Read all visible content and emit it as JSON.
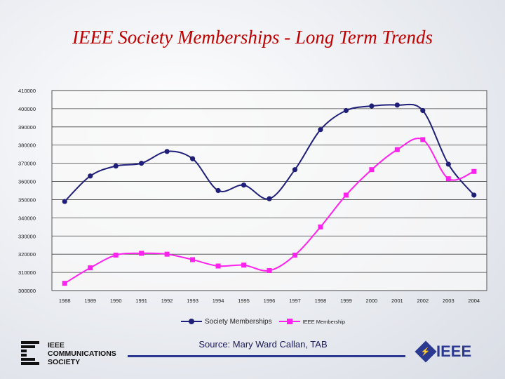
{
  "slide": {
    "title": "IEEE Society Memberships - Long Term Trends",
    "source": "Source: Mary Ward Callan, TAB"
  },
  "logos": {
    "comsoc_lines": [
      "IEEE",
      "COMMUNICATIONS",
      "SOCIETY"
    ],
    "ieee_text": "IEEE",
    "ieee_diamond_glyph": "⚡"
  },
  "colors": {
    "title": "#c00000",
    "series_society": "#1f1f7a",
    "series_ieee": "#ff22ee",
    "plot_bg": "#f8f8f8"
  },
  "chart_data": {
    "type": "line",
    "title": "",
    "xlabel": "",
    "ylabel": "",
    "categories": [
      "1988",
      "1989",
      "1990",
      "1991",
      "1992",
      "1993",
      "1994",
      "1995",
      "1996",
      "1997",
      "1998",
      "1999",
      "2000",
      "2001",
      "2002",
      "2003",
      "2004"
    ],
    "ylim": [
      300000,
      410000
    ],
    "yticks": [
      "410000",
      "400000",
      "390000",
      "380000",
      "370000",
      "360000",
      "350000",
      "340000",
      "330000",
      "320000",
      "310000",
      "300000"
    ],
    "grid": "horizontal",
    "legend": "bottom",
    "series": [
      {
        "name": "Society Memberships",
        "marker": "circle",
        "values": [
          349000,
          363000,
          368500,
          370000,
          376500,
          372500,
          355000,
          358000,
          350500,
          366500,
          388500,
          399000,
          401500,
          402000,
          399000,
          369500,
          352500
        ]
      },
      {
        "name": "IEEE Membership",
        "marker": "square",
        "values": [
          304000,
          312500,
          319500,
          320500,
          320000,
          317000,
          313500,
          314000,
          311000,
          319500,
          335000,
          352500,
          366500,
          377500,
          383000,
          361500,
          365500
        ]
      }
    ]
  }
}
